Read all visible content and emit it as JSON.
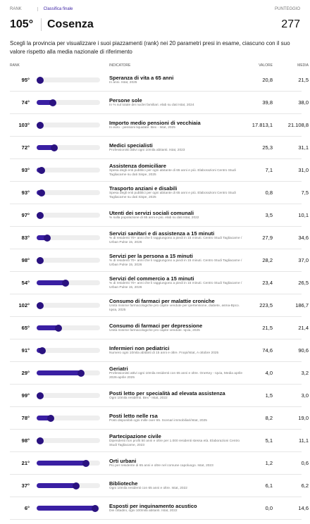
{
  "header": {
    "rank_label": "RANK",
    "tab": "Classifica finale",
    "score_label": "PUNTEGGIO",
    "rank": "105°",
    "province": "Cosenza",
    "score": "277"
  },
  "description": "Scegli la provincia per visualizzare i suoi piazzamenti (rank) nei 20 parametri presi in esame, ciascuno con il suo valore rispetto alla media nazionale di riferimento",
  "table": {
    "columns": [
      "RANK",
      "INDICATORE",
      "VALORE",
      "MEDIA"
    ],
    "rows": [
      {
        "rank": {
          "value": 95,
          "label": "95°"
        },
        "title": "Speranza di vita a 65 anni",
        "note": "In anni. Istat, 2025",
        "value": "20,8",
        "media": "21,5"
      },
      {
        "rank": {
          "value": 74,
          "label": "74°"
        },
        "title": "Persone sole",
        "note": "In % sul totale dei nuclei familiari. elab su dati Istat, 2024",
        "value": "39,8",
        "media": "38,0"
      },
      {
        "rank": {
          "value": 103,
          "label": "103°"
        },
        "title": "Importo medio pensioni di vecchiaia",
        "note": "In euro - pensioni liquidate. Bex - Istat, 2025",
        "value": "17.813,1",
        "media": "21.108,8"
      },
      {
        "rank": {
          "value": 72,
          "label": "72°"
        },
        "title": "Medici specialisti",
        "note": "Professionisti attivi ogni 10mila abitanti. Istat, 2023",
        "value": "25,3",
        "media": "31,1"
      },
      {
        "rank": {
          "value": 93,
          "label": "93°"
        },
        "title": "Assistenza domiciliare",
        "note": "Spesa degli enti pubblici per ogni abitante di 65 anni e più. Elaborazioni Centro Studi Tagliacarne su dati Sispe, 2025",
        "value": "7,1",
        "media": "31,0"
      },
      {
        "rank": {
          "value": 93,
          "label": "93°"
        },
        "title": "Trasporto anziani e disabili",
        "note": "Spesa degli enti pubblici per ogni abitante di 65 anni e più. Elaborazioni Centro Studi Tagliacarne su dati Sispe, 2025",
        "value": "0,8",
        "media": "7,5"
      },
      {
        "rank": {
          "value": 97,
          "label": "97°"
        },
        "title": "Utenti dei servizi sociali comunali",
        "note": "% sulla popolazione di 65 anni e più. elab su dati Istat, 2022",
        "value": "3,5",
        "media": "10,1"
      },
      {
        "rank": {
          "value": 83,
          "label": "83°"
        },
        "title": "Servizi sanitari e di assistenza a 15 minuti",
        "note": "% di residenti 70+ anni che li raggiungono a piedi in 15 minuti. Centro Studi Tagliacarne / Urban Pulse 15, 2026",
        "value": "27,9",
        "media": "34,6"
      },
      {
        "rank": {
          "value": 98,
          "label": "98°"
        },
        "title": "Servizi per la persona a 15 minuti",
        "note": "% di residenti 70+ anni che li raggiungono a piedi in 15 minuti. Centro Studi Tagliacarne / Urban Pulse 15, 2026",
        "value": "28,2",
        "media": "37,0"
      },
      {
        "rank": {
          "value": 54,
          "label": "54°"
        },
        "title": "Servizi del commercio a 15 minuti",
        "note": "% di residenti 70+ anni che li raggiungono a piedi in 15 minuti. Centro Studi Tagliacarne / Urban Pulse 15, 2026",
        "value": "23,4",
        "media": "26,5"
      },
      {
        "rank": {
          "value": 102,
          "label": "102°"
        },
        "title": "Consumo di farmaci per malattie croniche",
        "note": "Unità minime farmacologiche pro capite vendute per ipertensione, diabete, asma-Bpco. Iqvia, 2025",
        "value": "223,5",
        "media": "186,7"
      },
      {
        "rank": {
          "value": 65,
          "label": "65°"
        },
        "title": "Consumo di farmaci per depressione",
        "note": "Unità minime farmacologiche pro capite vendute. Iqvia, 2025",
        "value": "21,5",
        "media": "21,4"
      },
      {
        "rank": {
          "value": 91,
          "label": "91°"
        },
        "title": "Infermieri non pediatrici",
        "note": "Numero ogni 10mila abitanti di 15 anni e oltre. Fnopi/Istat, A ottobre 2025",
        "value": "74,6",
        "media": "90,6"
      },
      {
        "rank": {
          "value": 29,
          "label": "29°"
        },
        "title": "Geriatri",
        "note": "Professionisti attivi ogni 10mila residenti con 65 anni e oltre. OneKey - Iqvia, Media aprile 2026-aprile 2025",
        "value": "4,0",
        "media": "3,2"
      },
      {
        "rank": {
          "value": 99,
          "label": "99°"
        },
        "title": "Posti letto per specialità ad elevata assistenza",
        "note": "Ogni 10mila residenti. Bex - Istat, 2022",
        "value": "1,5",
        "media": "3,0"
      },
      {
        "rank": {
          "value": 78,
          "label": "78°"
        },
        "title": "Posti letto nelle rsa",
        "note": "Posti disponibili ogni mille over 65. Scenari immobiliari/Istat, 2025",
        "value": "8,2",
        "media": "19,0"
      },
      {
        "rank": {
          "value": 98,
          "label": "98°"
        },
        "title": "Partecipazione civile",
        "note": "Dipendenti non profit 50 anni e oltre per 1.000 residenti stessa età. Elaborazioni Centro Studi Tagliacarne, 2023",
        "value": "5,1",
        "media": "11,1"
      },
      {
        "rank": {
          "value": 21,
          "label": "21°"
        },
        "title": "Orti urbani",
        "note": "Più per residente di 65 anni e oltre nel comune capoluogo. Istat, 2023",
        "value": "1,2",
        "media": "0,6"
      },
      {
        "rank": {
          "value": 37,
          "label": "37°"
        },
        "title": "Biblioteche",
        "note": "Ogni 10mila residenti con 65 anni e oltre. Istat, 2022",
        "value": "6,1",
        "media": "6,2"
      },
      {
        "rank": {
          "value": 6,
          "label": "6°"
        },
        "title": "Esposti per inquinamento acustico",
        "note": "Dei cittadini, ogni 100mila abitanti. Istat, 2022",
        "value": "0,0",
        "media": "14,6"
      }
    ]
  }
}
